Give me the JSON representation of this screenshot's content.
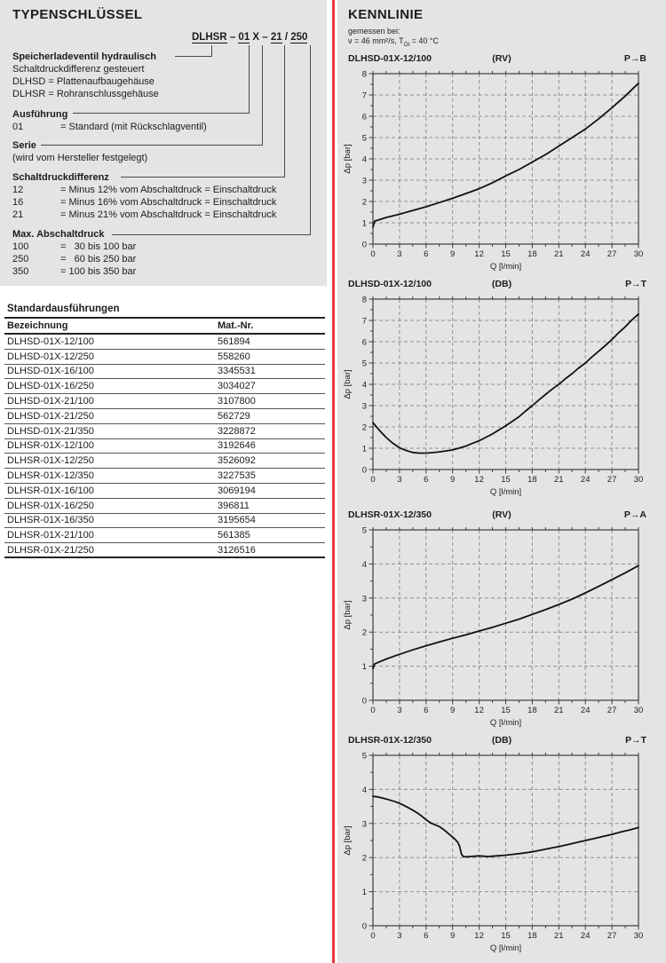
{
  "left": {
    "title": "TYPENSCHLÜSSEL",
    "code_segments": [
      {
        "text": "DLHSR",
        "underline": true
      },
      {
        "text": " – ",
        "underline": false
      },
      {
        "text": "01",
        "underline": true
      },
      {
        "text": " X – ",
        "underline": false
      },
      {
        "text": "21",
        "underline": true
      },
      {
        "text": " / ",
        "underline": false
      },
      {
        "text": "250",
        "underline": true
      }
    ],
    "blocks": [
      {
        "heading": "Speicherladeventil hydraulisch",
        "lines": [
          {
            "text": "Schaltdruckdifferenz gesteuert"
          },
          {
            "text": "DLHSD = Plattenaufbaugehäuse"
          },
          {
            "text": "DLHSR = Rohranschlussgehäuse"
          }
        ]
      },
      {
        "heading": "Ausführung",
        "lines": [
          {
            "code": "01",
            "text": "= Standard (mit Rückschlagventil)"
          }
        ]
      },
      {
        "heading": "Serie",
        "lines": [
          {
            "text": "(wird vom Hersteller festgelegt)"
          }
        ]
      },
      {
        "heading": "Schaltdruckdifferenz",
        "lines": [
          {
            "code": "12",
            "text": "= Minus 12% vom Abschaltdruck = Einschaltdruck"
          },
          {
            "code": "16",
            "text": "= Minus 16% vom Abschaltdruck = Einschaltdruck"
          },
          {
            "code": "21",
            "text": "= Minus 21% vom Abschaltdruck = Einschaltdruck"
          }
        ]
      },
      {
        "heading": "Max. Abschaltdruck",
        "lines": [
          {
            "code": "100",
            "text": "=   30 bis 100 bar"
          },
          {
            "code": "250",
            "text": "=   60 bis 250 bar"
          },
          {
            "code": "350",
            "text": "= 100 bis 350 bar"
          }
        ]
      }
    ],
    "table": {
      "title": "Standardausführungen",
      "columns": [
        "Bezeichnung",
        "Mat.-Nr."
      ],
      "rows": [
        [
          "DLHSD-01X-12/100",
          "561894"
        ],
        [
          "DLHSD-01X-12/250",
          "558260"
        ],
        [
          "DLHSD-01X-16/100",
          "3345531"
        ],
        [
          "DLHSD-01X-16/250",
          "3034027"
        ],
        [
          "DLHSD-01X-21/100",
          "3107800"
        ],
        [
          "DLHSD-01X-21/250",
          "562729"
        ],
        [
          "DLHSD-01X-21/350",
          "3228872"
        ],
        [
          "DLHSR-01X-12/100",
          "3192646"
        ],
        [
          "DLHSR-01X-12/250",
          "3526092"
        ],
        [
          "DLHSR-01X-12/350",
          "3227535"
        ],
        [
          "DLHSR-01X-16/100",
          "3069194"
        ],
        [
          "DLHSR-01X-16/250",
          "396811"
        ],
        [
          "DLHSR-01X-16/350",
          "3195654"
        ],
        [
          "DLHSR-01X-21/100",
          "561385"
        ],
        [
          "DLHSR-01X-21/250",
          "3126516"
        ]
      ]
    }
  },
  "right": {
    "title": "KENNLINIE",
    "measured_line1": "gemessen bei:",
    "measured_pre": "ν = 46 mm²/s, T",
    "measured_sub": "Öl",
    "measured_post": " = 40 °C"
  },
  "colors": {
    "panel_gray": "#e4e4e4",
    "divider_red": "#ea383d",
    "grid_gray": "#8f8f8f",
    "axis_dark": "#3c3c3c",
    "curve_black": "#111111"
  },
  "chart_data": [
    {
      "type": "line",
      "model": "DLHSD-01X-12/100",
      "variant": "(RV)",
      "path": "P→B",
      "xlabel": "Q [l/min]",
      "ylabel": "Δp [bar]",
      "xlim": [
        0,
        30
      ],
      "ylim": [
        0,
        8
      ],
      "xtick_step": 3,
      "ytick_step": 1,
      "grid": "dashed",
      "points": [
        [
          0,
          0.8
        ],
        [
          0.2,
          1.08
        ],
        [
          1.5,
          1.25
        ],
        [
          3,
          1.4
        ],
        [
          4.5,
          1.58
        ],
        [
          6,
          1.75
        ],
        [
          7.5,
          1.95
        ],
        [
          9,
          2.15
        ],
        [
          10.5,
          2.37
        ],
        [
          12,
          2.6
        ],
        [
          13.5,
          2.88
        ],
        [
          15,
          3.2
        ],
        [
          16.5,
          3.5
        ],
        [
          18,
          3.85
        ],
        [
          19.5,
          4.2
        ],
        [
          21,
          4.6
        ],
        [
          22.5,
          5.0
        ],
        [
          24,
          5.4
        ],
        [
          25.5,
          5.88
        ],
        [
          27,
          6.4
        ],
        [
          28.5,
          6.95
        ],
        [
          30,
          7.55
        ]
      ]
    },
    {
      "type": "line",
      "model": "DLHSD-01X-12/100",
      "variant": "(DB)",
      "path": "P→T",
      "xlabel": "Q [l/min]",
      "ylabel": "Δp [bar]",
      "xlim": [
        0,
        30
      ],
      "ylim": [
        0,
        8
      ],
      "xtick_step": 3,
      "ytick_step": 1,
      "grid": "dashed",
      "points": [
        [
          0,
          2.2
        ],
        [
          0.7,
          1.85
        ],
        [
          1.5,
          1.5
        ],
        [
          2.2,
          1.25
        ],
        [
          3,
          1.02
        ],
        [
          3.7,
          0.9
        ],
        [
          4.5,
          0.8
        ],
        [
          5.2,
          0.77
        ],
        [
          6,
          0.77
        ],
        [
          6.7,
          0.79
        ],
        [
          7.5,
          0.83
        ],
        [
          8.2,
          0.87
        ],
        [
          9,
          0.92
        ],
        [
          9.7,
          1.0
        ],
        [
          10.5,
          1.1
        ],
        [
          11.2,
          1.22
        ],
        [
          12,
          1.35
        ],
        [
          12.7,
          1.5
        ],
        [
          13.5,
          1.67
        ],
        [
          14.2,
          1.85
        ],
        [
          15,
          2.05
        ],
        [
          15.7,
          2.25
        ],
        [
          16.5,
          2.48
        ],
        [
          17.2,
          2.73
        ],
        [
          18,
          3.0
        ],
        [
          18.7,
          3.25
        ],
        [
          19.5,
          3.52
        ],
        [
          20.2,
          3.76
        ],
        [
          21,
          4.0
        ],
        [
          21.7,
          4.25
        ],
        [
          22.5,
          4.5
        ],
        [
          23.2,
          4.75
        ],
        [
          24,
          5.0
        ],
        [
          24.7,
          5.27
        ],
        [
          25.5,
          5.55
        ],
        [
          26.2,
          5.8
        ],
        [
          27,
          6.1
        ],
        [
          27.7,
          6.4
        ],
        [
          28.5,
          6.7
        ],
        [
          29.2,
          7.0
        ],
        [
          30,
          7.3
        ]
      ]
    },
    {
      "type": "line",
      "model": "DLHSR-01X-12/350",
      "variant": "(RV)",
      "path": "P→A",
      "xlabel": "Q [l/min]",
      "ylabel": "Δp [bar]",
      "xlim": [
        0,
        30
      ],
      "ylim": [
        0,
        5
      ],
      "xtick_step": 3,
      "ytick_step": 1,
      "grid": "dashed",
      "points": [
        [
          0,
          0.93
        ],
        [
          0.2,
          1.07
        ],
        [
          1.5,
          1.21
        ],
        [
          3,
          1.35
        ],
        [
          4.5,
          1.48
        ],
        [
          6,
          1.6
        ],
        [
          7.5,
          1.71
        ],
        [
          9,
          1.82
        ],
        [
          10.5,
          1.92
        ],
        [
          12,
          2.03
        ],
        [
          13.5,
          2.14
        ],
        [
          15,
          2.26
        ],
        [
          16.5,
          2.38
        ],
        [
          18,
          2.52
        ],
        [
          19.5,
          2.66
        ],
        [
          21,
          2.81
        ],
        [
          22.5,
          2.97
        ],
        [
          24,
          3.15
        ],
        [
          25.5,
          3.34
        ],
        [
          27,
          3.54
        ],
        [
          28.5,
          3.74
        ],
        [
          30,
          3.95
        ]
      ]
    },
    {
      "type": "line",
      "model": "DLHSR-01X-12/350",
      "variant": "(DB)",
      "path": "P→T",
      "xlabel": "Q [l/min]",
      "ylabel": "Δp [bar]",
      "xlim": [
        0,
        30
      ],
      "ylim": [
        0,
        5
      ],
      "xtick_step": 3,
      "ytick_step": 1,
      "grid": "dashed",
      "points": [
        [
          0,
          3.8
        ],
        [
          0.5,
          3.78
        ],
        [
          1,
          3.75
        ],
        [
          1.5,
          3.72
        ],
        [
          2,
          3.68
        ],
        [
          2.5,
          3.64
        ],
        [
          3,
          3.59
        ],
        [
          3.5,
          3.53
        ],
        [
          4,
          3.46
        ],
        [
          4.5,
          3.39
        ],
        [
          5,
          3.31
        ],
        [
          5.5,
          3.22
        ],
        [
          6,
          3.11
        ],
        [
          6.5,
          3.02
        ],
        [
          7,
          2.96
        ],
        [
          7.5,
          2.91
        ],
        [
          8,
          2.82
        ],
        [
          8.5,
          2.71
        ],
        [
          9,
          2.6
        ],
        [
          9.3,
          2.53
        ],
        [
          9.6,
          2.44
        ],
        [
          9.8,
          2.32
        ],
        [
          10,
          2.1
        ],
        [
          10.2,
          2.03
        ],
        [
          10.6,
          2.02
        ],
        [
          11,
          2.03
        ],
        [
          11.5,
          2.04
        ],
        [
          12,
          2.05
        ],
        [
          12.5,
          2.04
        ],
        [
          13,
          2.03
        ],
        [
          13.5,
          2.04
        ],
        [
          14,
          2.05
        ],
        [
          15,
          2.07
        ],
        [
          16,
          2.1
        ],
        [
          17,
          2.13
        ],
        [
          18,
          2.17
        ],
        [
          19,
          2.22
        ],
        [
          20,
          2.27
        ],
        [
          21,
          2.32
        ],
        [
          22,
          2.38
        ],
        [
          23,
          2.44
        ],
        [
          24,
          2.5
        ],
        [
          25,
          2.56
        ],
        [
          26,
          2.62
        ],
        [
          27,
          2.68
        ],
        [
          28,
          2.75
        ],
        [
          29,
          2.81
        ],
        [
          30,
          2.88
        ]
      ]
    }
  ]
}
